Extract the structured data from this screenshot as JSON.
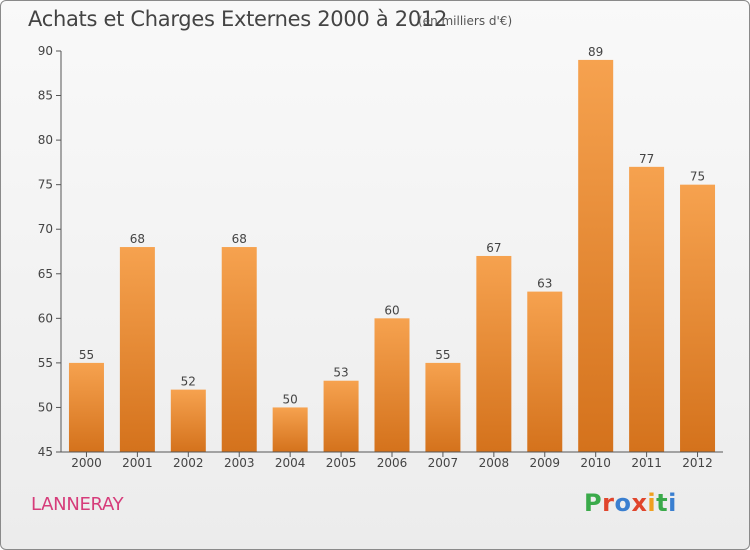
{
  "header": {
    "title": "Achats et Charges Externes 2000 à 2012",
    "subtitle": "(en milliers d'€)"
  },
  "footer": {
    "location": "LANNERAY",
    "logo": "Proxiti"
  },
  "colors": {
    "bar_top": "#f6a24f",
    "bar_bottom": "#d4721c",
    "axis": "#555555",
    "grid": "#dddddd",
    "logo_letters": [
      "#3aaa4a",
      "#e0452c",
      "#3a7fd0",
      "#e0452c",
      "#f0a020",
      "#3aaa4a",
      "#3a7fd0"
    ]
  },
  "chart_data": {
    "type": "bar",
    "categories": [
      "2000",
      "2001",
      "2002",
      "2003",
      "2004",
      "2005",
      "2006",
      "2007",
      "2008",
      "2009",
      "2010",
      "2011",
      "2012"
    ],
    "values": [
      55,
      68,
      52,
      68,
      50,
      53,
      60,
      55,
      67,
      63,
      89,
      77,
      75
    ],
    "ylim": [
      45,
      90
    ],
    "yticks": [
      45,
      50,
      55,
      60,
      65,
      70,
      75,
      80,
      85,
      90
    ],
    "data_labels": true,
    "grid": false,
    "xlabel": "",
    "ylabel": ""
  }
}
